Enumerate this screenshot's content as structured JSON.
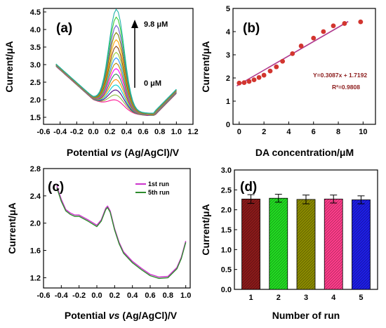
{
  "figure": {
    "panels": [
      {
        "id": "a",
        "label": "(a)",
        "xlabel_parts": [
          "Potential ",
          "vs",
          " (Ag/AgCl)/V"
        ],
        "ylabel": "Current/μA",
        "annotations": {
          "top": "9.8 μM",
          "bottom": "0 μM"
        }
      },
      {
        "id": "b",
        "label": "(b)",
        "xlabel": "DA concentration/μM",
        "ylabel": "Current/μA",
        "equation": "Y=0.3087x + 1.7192",
        "r_squared": "R²=0.9808"
      },
      {
        "id": "c",
        "label": "(c)",
        "xlabel_parts": [
          "Potential ",
          "vs",
          " (Ag/AgCl)/V"
        ],
        "ylabel": "Current/μA",
        "legend": [
          "1st run",
          "5th run"
        ]
      },
      {
        "id": "d",
        "label": "(d)",
        "xlabel": "Number of run",
        "ylabel": "Current/μA"
      }
    ]
  },
  "chart_data": [
    {
      "panel": "a",
      "type": "line",
      "xlim": [
        -0.6,
        1.2
      ],
      "ylim": [
        1.3,
        4.6
      ],
      "xticks": [
        "-0.6",
        "-0.4",
        "-0.2",
        "0.0",
        "0.2",
        "0.4",
        "0.6",
        "0.8",
        "1.0",
        "1.2"
      ],
      "yticks": [
        "1.5",
        "2.0",
        "2.5",
        "3.0",
        "3.5",
        "4.0",
        "4.5"
      ],
      "peak_x": 0.28,
      "series_peak_currents": [
        1.98,
        2.12,
        2.26,
        2.4,
        2.55,
        2.7,
        2.85,
        3.0,
        3.15,
        3.3,
        3.47,
        3.65,
        3.85,
        4.05,
        4.28,
        4.5
      ],
      "series_colors": [
        "#ff1493",
        "#8fbc3f",
        "#4b0082",
        "#00ced1",
        "#ff8c00",
        "#2e8b57",
        "#ff00ff",
        "#b8860b",
        "#1e90ff",
        "#9acd32",
        "#8b4513",
        "#ffa500",
        "#808000",
        "#6a5acd",
        "#32cd32",
        "#20b2aa"
      ]
    },
    {
      "panel": "b",
      "type": "scatter",
      "xlim": [
        -0.5,
        11
      ],
      "ylim": [
        0,
        5
      ],
      "xticks": [
        "0",
        "2",
        "4",
        "6",
        "8",
        "10"
      ],
      "yticks": [
        "0",
        "1",
        "2",
        "3",
        "4",
        "5"
      ],
      "x": [
        0,
        0.4,
        0.8,
        1.2,
        1.6,
        2.0,
        2.5,
        3.0,
        3.5,
        4.3,
        5.0,
        6.0,
        6.8,
        7.6,
        8.5,
        9.8
      ],
      "y": [
        1.78,
        1.8,
        1.85,
        1.92,
        2.02,
        2.12,
        2.3,
        2.48,
        2.72,
        3.05,
        3.38,
        3.72,
        4.0,
        4.25,
        4.35,
        4.42
      ],
      "fit": {
        "slope": 0.3087,
        "intercept": 1.7192,
        "x_range": [
          -0.2,
          8.8
        ]
      },
      "marker_color": "#d2352f",
      "line_color": "#b03a8e"
    },
    {
      "panel": "c",
      "type": "line",
      "xlim": [
        -0.6,
        1.05
      ],
      "ylim": [
        1.05,
        2.8
      ],
      "xticks": [
        "-0.6",
        "-0.4",
        "-0.2",
        "0.0",
        "0.2",
        "0.4",
        "0.6",
        "0.8",
        "1.0"
      ],
      "yticks": [
        "1.2",
        "1.6",
        "2.0",
        "2.4",
        "2.8"
      ],
      "series": [
        {
          "name": "1st run",
          "color": "#cc33cc",
          "x": [
            -0.45,
            -0.4,
            -0.35,
            -0.3,
            -0.25,
            -0.2,
            -0.1,
            0.0,
            0.05,
            0.1,
            0.12,
            0.15,
            0.2,
            0.25,
            0.3,
            0.4,
            0.5,
            0.6,
            0.7,
            0.8,
            0.9,
            0.95,
            1.0
          ],
          "y": [
            2.55,
            2.35,
            2.2,
            2.15,
            2.12,
            2.12,
            2.05,
            1.97,
            2.05,
            2.22,
            2.25,
            2.18,
            1.92,
            1.72,
            1.58,
            1.44,
            1.34,
            1.25,
            1.21,
            1.22,
            1.35,
            1.5,
            1.74
          ]
        },
        {
          "name": "5th run",
          "color": "#2e8b2e",
          "x": [
            -0.45,
            -0.4,
            -0.35,
            -0.3,
            -0.25,
            -0.2,
            -0.1,
            0.0,
            0.05,
            0.1,
            0.12,
            0.15,
            0.2,
            0.25,
            0.3,
            0.4,
            0.5,
            0.6,
            0.7,
            0.8,
            0.9,
            0.95,
            1.0
          ],
          "y": [
            2.52,
            2.32,
            2.18,
            2.13,
            2.1,
            2.1,
            2.03,
            1.95,
            2.03,
            2.2,
            2.23,
            2.16,
            1.9,
            1.7,
            1.56,
            1.42,
            1.32,
            1.23,
            1.19,
            1.2,
            1.33,
            1.48,
            1.72
          ]
        }
      ]
    },
    {
      "panel": "d",
      "type": "bar",
      "categories": [
        "1",
        "2",
        "3",
        "4",
        "5"
      ],
      "values": [
        2.27,
        2.29,
        2.26,
        2.27,
        2.25
      ],
      "errors": [
        0.11,
        0.1,
        0.11,
        0.1,
        0.1
      ],
      "ylim": [
        0,
        3.0
      ],
      "yticks": [
        "0.0",
        "0.5",
        "1.0",
        "1.5",
        "2.0",
        "2.5",
        "3.0"
      ],
      "bar_colors": [
        "#8b1a1a",
        "#22dd22",
        "#8b8b00",
        "#ff3d8b",
        "#1e1ee6"
      ]
    }
  ]
}
